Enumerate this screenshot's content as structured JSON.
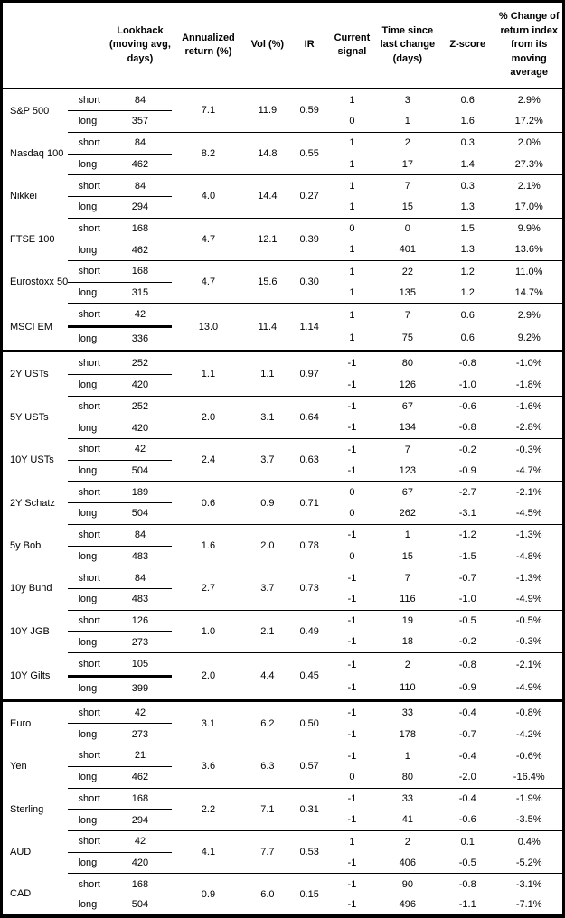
{
  "colors": {
    "border": "#000000",
    "background": "#ffffff",
    "text": "#000000"
  },
  "table": {
    "columns": {
      "asset": "",
      "leg": "",
      "lookback": "Lookback (moving avg, days)",
      "annualized_return": "Annualized return (%)",
      "vol": "Vol (%)",
      "ir": "IR",
      "current_signal": "Current signal",
      "time_since": "Time since last change (days)",
      "z_score": "Z-score",
      "pct_change": "% Change of return index from its moving average"
    },
    "groups": [
      {
        "asset": "S&P 500",
        "annualized_return": "7.1",
        "vol": "11.9",
        "ir": "0.59",
        "separator": "thin",
        "rows": [
          {
            "leg": "short",
            "lookback": "84",
            "signal": "1",
            "time_since": "3",
            "z_score": "0.6",
            "pct_change": "2.9%"
          },
          {
            "leg": "long",
            "lookback": "357",
            "signal": "0",
            "time_since": "1",
            "z_score": "1.6",
            "pct_change": "17.2%"
          }
        ]
      },
      {
        "asset": "Nasdaq 100",
        "annualized_return": "8.2",
        "vol": "14.8",
        "ir": "0.55",
        "separator": "thin",
        "rows": [
          {
            "leg": "short",
            "lookback": "84",
            "signal": "1",
            "time_since": "2",
            "z_score": "0.3",
            "pct_change": "2.0%"
          },
          {
            "leg": "long",
            "lookback": "462",
            "signal": "1",
            "time_since": "17",
            "z_score": "1.4",
            "pct_change": "27.3%"
          }
        ]
      },
      {
        "asset": "Nikkei",
        "annualized_return": "4.0",
        "vol": "14.4",
        "ir": "0.27",
        "separator": "thin",
        "rows": [
          {
            "leg": "short",
            "lookback": "84",
            "signal": "1",
            "time_since": "7",
            "z_score": "0.3",
            "pct_change": "2.1%"
          },
          {
            "leg": "long",
            "lookback": "294",
            "signal": "1",
            "time_since": "15",
            "z_score": "1.3",
            "pct_change": "17.0%"
          }
        ]
      },
      {
        "asset": "FTSE 100",
        "annualized_return": "4.7",
        "vol": "12.1",
        "ir": "0.39",
        "separator": "thin",
        "rows": [
          {
            "leg": "short",
            "lookback": "168",
            "signal": "0",
            "time_since": "0",
            "z_score": "1.5",
            "pct_change": "9.9%"
          },
          {
            "leg": "long",
            "lookback": "462",
            "signal": "1",
            "time_since": "401",
            "z_score": "1.3",
            "pct_change": "13.6%"
          }
        ]
      },
      {
        "asset": "Eurostoxx 50",
        "annualized_return": "4.7",
        "vol": "15.6",
        "ir": "0.30",
        "separator": "thin",
        "rows": [
          {
            "leg": "short",
            "lookback": "168",
            "signal": "1",
            "time_since": "22",
            "z_score": "1.2",
            "pct_change": "11.0%"
          },
          {
            "leg": "long",
            "lookback": "315",
            "signal": "1",
            "time_since": "135",
            "z_score": "1.2",
            "pct_change": "14.7%"
          }
        ]
      },
      {
        "asset": "MSCI EM",
        "annualized_return": "13.0",
        "vol": "11.4",
        "ir": "1.14",
        "separator": "thick",
        "rows": [
          {
            "leg": "short",
            "lookback": "42",
            "signal": "1",
            "time_since": "7",
            "z_score": "0.6",
            "pct_change": "2.9%"
          },
          {
            "leg": "long",
            "lookback": "336",
            "signal": "1",
            "time_since": "75",
            "z_score": "0.6",
            "pct_change": "9.2%"
          }
        ]
      },
      {
        "asset": "2Y USTs",
        "annualized_return": "1.1",
        "vol": "1.1",
        "ir": "0.97",
        "separator": "thin",
        "rows": [
          {
            "leg": "short",
            "lookback": "252",
            "signal": "-1",
            "time_since": "80",
            "z_score": "-0.8",
            "pct_change": "-1.0%"
          },
          {
            "leg": "long",
            "lookback": "420",
            "signal": "-1",
            "time_since": "126",
            "z_score": "-1.0",
            "pct_change": "-1.8%"
          }
        ]
      },
      {
        "asset": "5Y USTs",
        "annualized_return": "2.0",
        "vol": "3.1",
        "ir": "0.64",
        "separator": "thin",
        "rows": [
          {
            "leg": "short",
            "lookback": "252",
            "signal": "-1",
            "time_since": "67",
            "z_score": "-0.6",
            "pct_change": "-1.6%"
          },
          {
            "leg": "long",
            "lookback": "420",
            "signal": "-1",
            "time_since": "134",
            "z_score": "-0.8",
            "pct_change": "-2.8%"
          }
        ]
      },
      {
        "asset": "10Y USTs",
        "annualized_return": "2.4",
        "vol": "3.7",
        "ir": "0.63",
        "separator": "thin",
        "rows": [
          {
            "leg": "short",
            "lookback": "42",
            "signal": "-1",
            "time_since": "7",
            "z_score": "-0.2",
            "pct_change": "-0.3%"
          },
          {
            "leg": "long",
            "lookback": "504",
            "signal": "-1",
            "time_since": "123",
            "z_score": "-0.9",
            "pct_change": "-4.7%"
          }
        ]
      },
      {
        "asset": "2Y Schatz",
        "annualized_return": "0.6",
        "vol": "0.9",
        "ir": "0.71",
        "separator": "thin",
        "rows": [
          {
            "leg": "short",
            "lookback": "189",
            "signal": "0",
            "time_since": "67",
            "z_score": "-2.7",
            "pct_change": "-2.1%"
          },
          {
            "leg": "long",
            "lookback": "504",
            "signal": "0",
            "time_since": "262",
            "z_score": "-3.1",
            "pct_change": "-4.5%"
          }
        ]
      },
      {
        "asset": "5y Bobl",
        "annualized_return": "1.6",
        "vol": "2.0",
        "ir": "0.78",
        "separator": "thin",
        "rows": [
          {
            "leg": "short",
            "lookback": "84",
            "signal": "-1",
            "time_since": "1",
            "z_score": "-1.2",
            "pct_change": "-1.3%"
          },
          {
            "leg": "long",
            "lookback": "483",
            "signal": "0",
            "time_since": "15",
            "z_score": "-1.5",
            "pct_change": "-4.8%"
          }
        ]
      },
      {
        "asset": "10y Bund",
        "annualized_return": "2.7",
        "vol": "3.7",
        "ir": "0.73",
        "separator": "thin",
        "rows": [
          {
            "leg": "short",
            "lookback": "84",
            "signal": "-1",
            "time_since": "7",
            "z_score": "-0.7",
            "pct_change": "-1.3%"
          },
          {
            "leg": "long",
            "lookback": "483",
            "signal": "-1",
            "time_since": "116",
            "z_score": "-1.0",
            "pct_change": "-4.9%"
          }
        ]
      },
      {
        "asset": "10Y JGB",
        "annualized_return": "1.0",
        "vol": "2.1",
        "ir": "0.49",
        "separator": "thin",
        "rows": [
          {
            "leg": "short",
            "lookback": "126",
            "signal": "-1",
            "time_since": "19",
            "z_score": "-0.5",
            "pct_change": "-0.5%"
          },
          {
            "leg": "long",
            "lookback": "273",
            "signal": "-1",
            "time_since": "18",
            "z_score": "-0.2",
            "pct_change": "-0.3%"
          }
        ]
      },
      {
        "asset": "10Y Gilts",
        "annualized_return": "2.0",
        "vol": "4.4",
        "ir": "0.45",
        "separator": "thick",
        "rows": [
          {
            "leg": "short",
            "lookback": "105",
            "signal": "-1",
            "time_since": "2",
            "z_score": "-0.8",
            "pct_change": "-2.1%"
          },
          {
            "leg": "long",
            "lookback": "399",
            "signal": "-1",
            "time_since": "110",
            "z_score": "-0.9",
            "pct_change": "-4.9%"
          }
        ]
      },
      {
        "asset": "Euro",
        "annualized_return": "3.1",
        "vol": "6.2",
        "ir": "0.50",
        "separator": "thin",
        "rows": [
          {
            "leg": "short",
            "lookback": "42",
            "signal": "-1",
            "time_since": "33",
            "z_score": "-0.4",
            "pct_change": "-0.8%"
          },
          {
            "leg": "long",
            "lookback": "273",
            "signal": "-1",
            "time_since": "178",
            "z_score": "-0.7",
            "pct_change": "-4.2%"
          }
        ]
      },
      {
        "asset": "Yen",
        "annualized_return": "3.6",
        "vol": "6.3",
        "ir": "0.57",
        "separator": "thin",
        "rows": [
          {
            "leg": "short",
            "lookback": "21",
            "signal": "-1",
            "time_since": "1",
            "z_score": "-0.4",
            "pct_change": "-0.6%"
          },
          {
            "leg": "long",
            "lookback": "462",
            "signal": "0",
            "time_since": "80",
            "z_score": "-2.0",
            "pct_change": "-16.4%"
          }
        ]
      },
      {
        "asset": "Sterling",
        "annualized_return": "2.2",
        "vol": "7.1",
        "ir": "0.31",
        "separator": "thin",
        "rows": [
          {
            "leg": "short",
            "lookback": "168",
            "signal": "-1",
            "time_since": "33",
            "z_score": "-0.4",
            "pct_change": "-1.9%"
          },
          {
            "leg": "long",
            "lookback": "294",
            "signal": "-1",
            "time_since": "41",
            "z_score": "-0.6",
            "pct_change": "-3.5%"
          }
        ]
      },
      {
        "asset": "AUD",
        "annualized_return": "4.1",
        "vol": "7.7",
        "ir": "0.53",
        "separator": "thin",
        "rows": [
          {
            "leg": "short",
            "lookback": "42",
            "signal": "1",
            "time_since": "2",
            "z_score": "0.1",
            "pct_change": "0.4%"
          },
          {
            "leg": "long",
            "lookback": "420",
            "signal": "-1",
            "time_since": "406",
            "z_score": "-0.5",
            "pct_change": "-5.2%"
          }
        ]
      },
      {
        "asset": "CAD",
        "annualized_return": "0.9",
        "vol": "6.0",
        "ir": "0.15",
        "separator": "none",
        "rows": [
          {
            "leg": "short",
            "lookback": "168",
            "signal": "-1",
            "time_since": "90",
            "z_score": "-0.8",
            "pct_change": "-3.1%"
          },
          {
            "leg": "long",
            "lookback": "504",
            "signal": "-1",
            "time_since": "496",
            "z_score": "-1.1",
            "pct_change": "-7.1%"
          }
        ]
      }
    ]
  }
}
